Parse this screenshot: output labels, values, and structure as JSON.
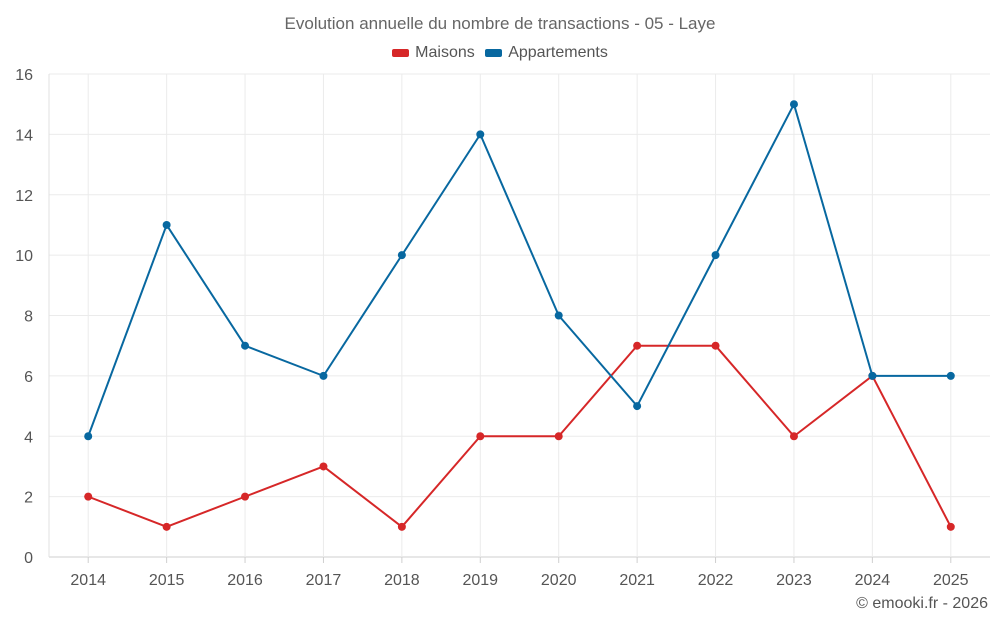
{
  "chart_data": {
    "type": "line",
    "title": "Evolution annuelle du nombre de transactions - 05 - Laye",
    "xlabel": "",
    "ylabel": "",
    "categories": [
      "2014",
      "2015",
      "2016",
      "2017",
      "2018",
      "2019",
      "2020",
      "2021",
      "2022",
      "2023",
      "2024",
      "2025"
    ],
    "ylim": [
      0,
      16
    ],
    "yticks": [
      0,
      2,
      4,
      6,
      8,
      10,
      12,
      14,
      16
    ],
    "grid": true,
    "legend_position": "top-center",
    "series": [
      {
        "name": "Maisons",
        "color": "#d62728",
        "values": [
          2,
          1,
          2,
          3,
          1,
          4,
          4,
          7,
          7,
          4,
          6,
          1
        ]
      },
      {
        "name": "Appartements",
        "color": "#0868a0",
        "values": [
          4,
          11,
          7,
          6,
          10,
          14,
          8,
          5,
          10,
          15,
          6,
          6
        ]
      }
    ]
  },
  "credit": "© emooki.fr - 2026"
}
